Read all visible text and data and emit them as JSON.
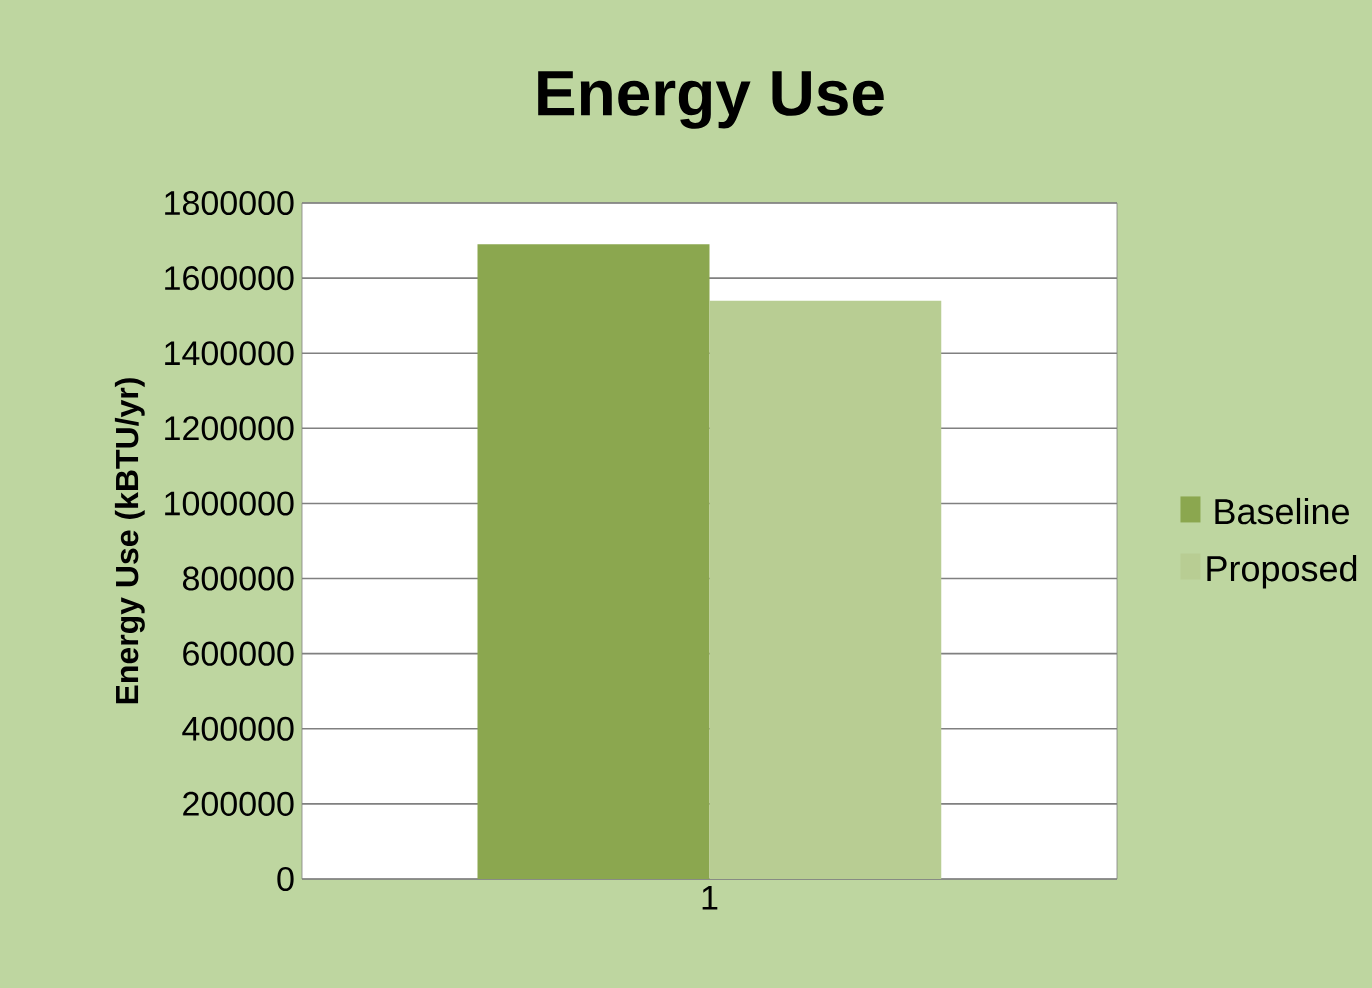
{
  "chart_data": {
    "type": "bar",
    "title": "Energy Use",
    "ylabel": "Energy Use (kBTU/yr)",
    "categories": [
      "1"
    ],
    "series": [
      {
        "name": "Baseline",
        "color": "#8ba74f",
        "values": [
          1690000
        ]
      },
      {
        "name": "Proposed",
        "color": "#b8cd93",
        "values": [
          1540000
        ]
      }
    ],
    "ylim": [
      0,
      1800000
    ],
    "yticks": [
      0,
      200000,
      400000,
      600000,
      800000,
      1000000,
      1200000,
      1400000,
      1600000,
      1800000
    ],
    "grid": "y",
    "legend": "right"
  }
}
